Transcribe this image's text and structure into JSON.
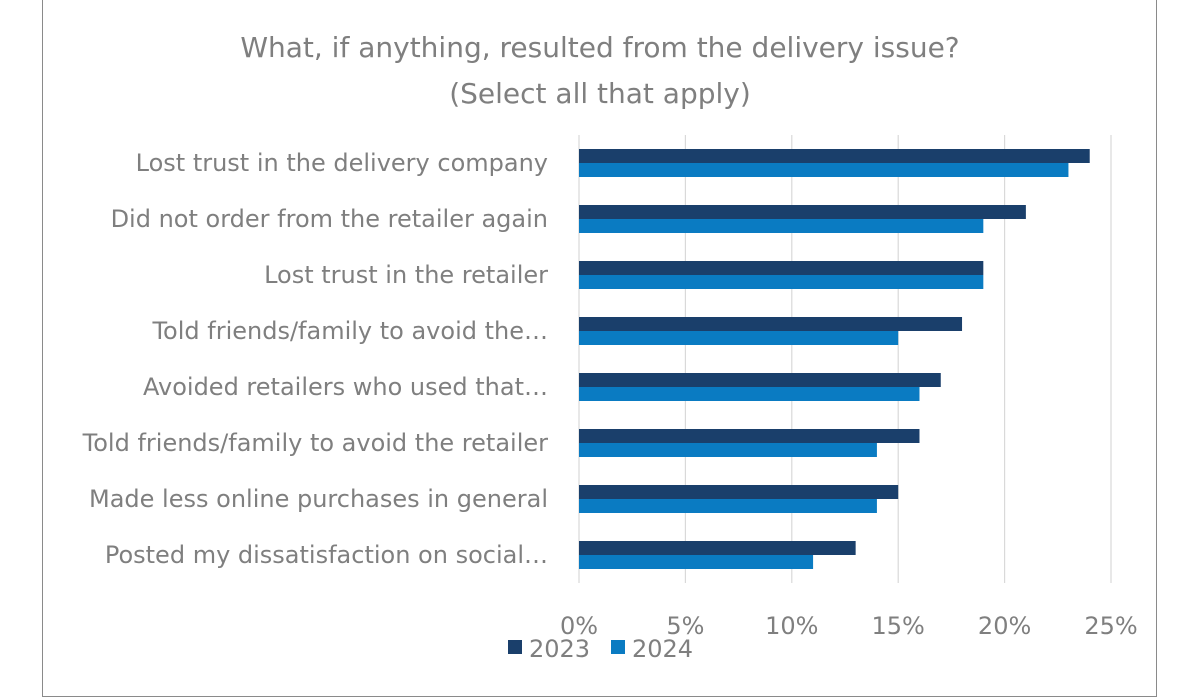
{
  "chart_data": {
    "type": "bar",
    "orientation": "horizontal",
    "title": "What, if anything, resulted from the delivery issue?",
    "subtitle": "(Select all that apply)",
    "categories": [
      "Lost trust in the delivery company",
      "Did not order from the retailer again",
      "Lost trust in the retailer",
      "Told friends/family to avoid the…",
      "Avoided retailers who used that…",
      "Told friends/family to avoid the retailer",
      "Made less online purchases in general",
      "Posted my  dissatisfaction on social…"
    ],
    "series": [
      {
        "name": "2023",
        "color": "#1a3f6b",
        "values": [
          24,
          21,
          19,
          18,
          17,
          16,
          15,
          13
        ]
      },
      {
        "name": "2024",
        "color": "#0a7bc2",
        "values": [
          23,
          19,
          19,
          15,
          16,
          14,
          14,
          11
        ]
      }
    ],
    "xlim": [
      0,
      25
    ],
    "xticks": [
      "0%",
      "5%",
      "10%",
      "15%",
      "20%",
      "25%"
    ],
    "xtick_values": [
      0,
      5,
      10,
      15,
      20,
      25
    ],
    "grid": "vertical",
    "legend": "bottom",
    "xlabel": "",
    "ylabel": ""
  }
}
